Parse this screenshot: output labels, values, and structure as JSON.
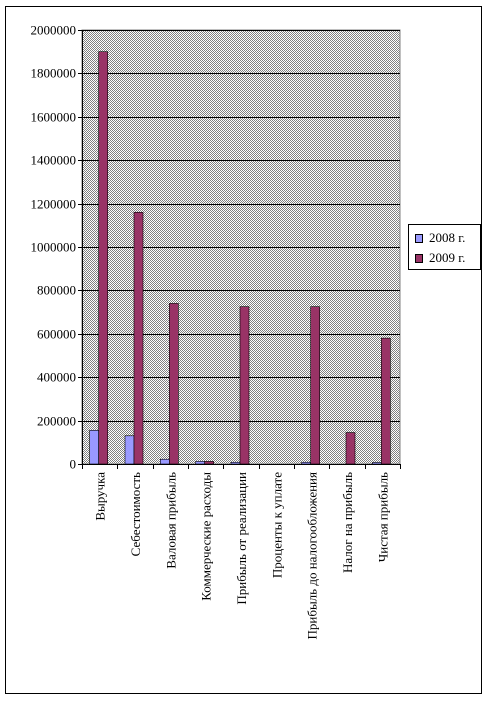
{
  "chart_data": {
    "type": "bar",
    "categories": [
      "Выручка",
      "Себестоимость",
      "Валовая прибыль",
      "Коммерческие расходы",
      "Прибыль от реализации",
      "Проценты к уплате",
      "Прибыль до налогообложения",
      "Налог на прибыль",
      "Чистая прибыль"
    ],
    "series": [
      {
        "name": "2008 г.",
        "color": "#9999ff",
        "values": [
          155000,
          130000,
          22000,
          12000,
          8000,
          0,
          8000,
          0,
          7000
        ]
      },
      {
        "name": "2009 г.",
        "color": "#993366",
        "values": [
          1900000,
          1160000,
          740000,
          12000,
          725000,
          0,
          725000,
          145000,
          580000
        ]
      }
    ],
    "ylim": [
      0,
      2000000
    ],
    "yticks": [
      "0",
      "200000",
      "400000",
      "600000",
      "800000",
      "1000000",
      "1200000",
      "1400000",
      "1600000",
      "1800000",
      "2000000"
    ],
    "grid": true,
    "plot_background": "#c0c0c0",
    "legend_position": "right"
  }
}
